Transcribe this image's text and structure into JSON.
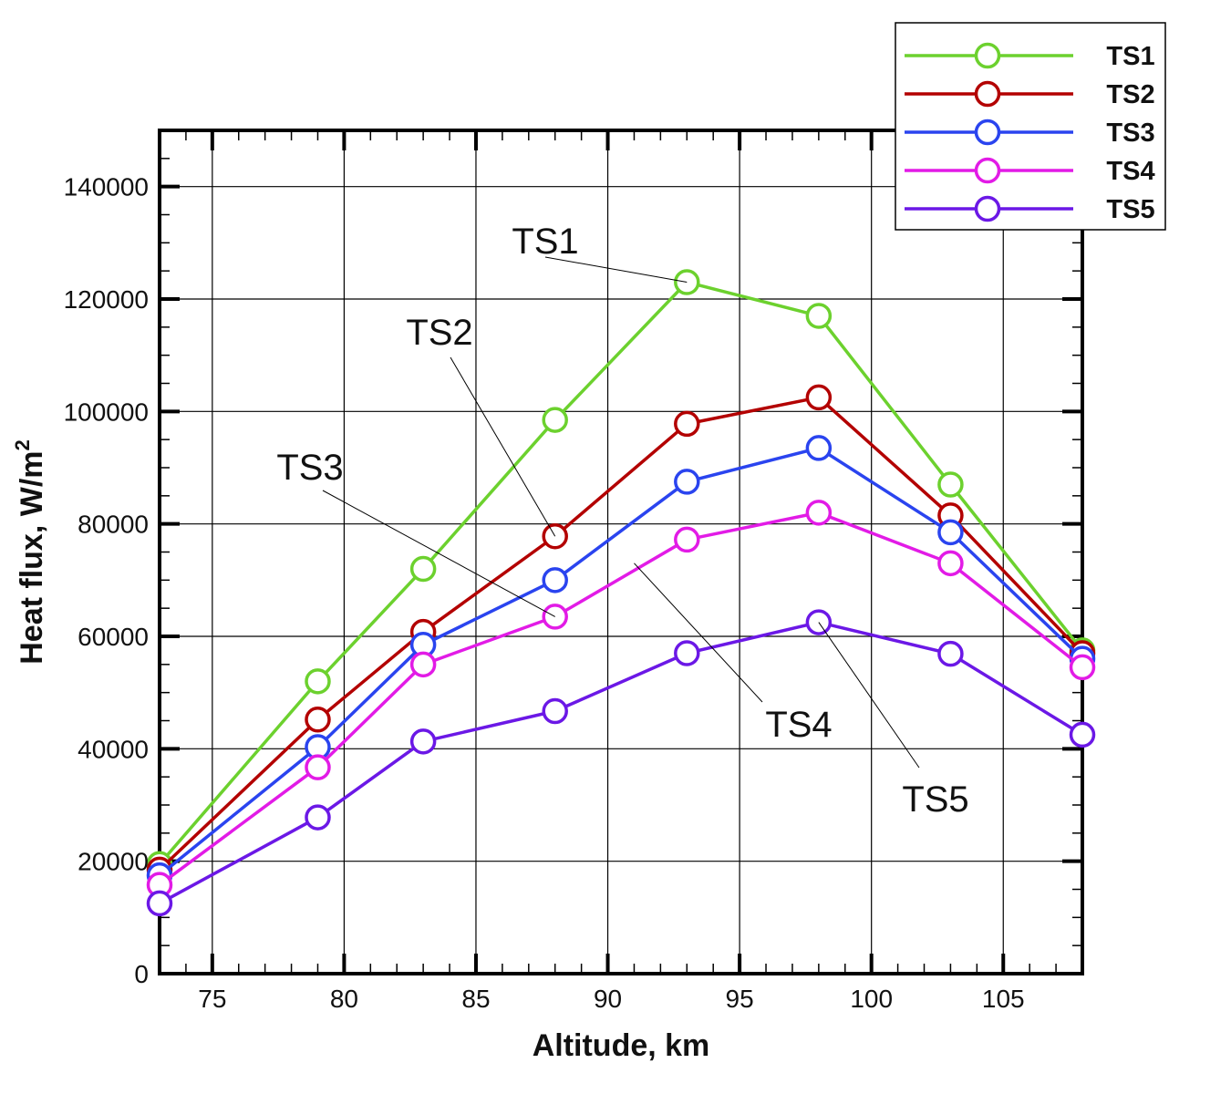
{
  "chart_data": {
    "type": "line",
    "xlabel": "Altitude, km",
    "ylabel_main": "Heat flux, W/m",
    "ylabel_sup": "2",
    "xlim": [
      73,
      108
    ],
    "ylim": [
      0,
      150000
    ],
    "xticks": [
      75,
      80,
      85,
      90,
      95,
      100,
      105
    ],
    "yticks": [
      0,
      20000,
      40000,
      60000,
      80000,
      100000,
      120000,
      140000
    ],
    "grid": true,
    "legend_position": "top-right",
    "x": [
      73,
      79,
      83,
      88,
      93,
      98,
      103,
      108
    ],
    "series": [
      {
        "name": "TS1",
        "color": "#6cd12e",
        "values": [
          19500,
          52000,
          72000,
          98500,
          123000,
          117000,
          87000,
          57500
        ]
      },
      {
        "name": "TS2",
        "color": "#b30000",
        "values": [
          18500,
          45200,
          60800,
          77800,
          97800,
          102500,
          81500,
          57000
        ]
      },
      {
        "name": "TS3",
        "color": "#2a44ef",
        "values": [
          17500,
          40300,
          58500,
          70000,
          87500,
          93500,
          78500,
          56000
        ]
      },
      {
        "name": "TS4",
        "color": "#e21be6",
        "values": [
          15800,
          36700,
          55000,
          63500,
          77200,
          82000,
          73000,
          54500
        ]
      },
      {
        "name": "TS5",
        "color": "#6b18e6",
        "values": [
          12500,
          27800,
          41300,
          46700,
          57000,
          62500,
          56900,
          42500
        ]
      }
    ],
    "annotations": [
      {
        "text": "TS1",
        "target_x": 93,
        "target_y": 123000
      },
      {
        "text": "TS2",
        "target_x": 88,
        "target_y": 77800
      },
      {
        "text": "TS3",
        "target_x": 88,
        "target_y": 63500
      },
      {
        "text": "TS4",
        "target_x": 91,
        "target_y": 73000
      },
      {
        "text": "TS5",
        "target_x": 98,
        "target_y": 62500
      }
    ]
  }
}
